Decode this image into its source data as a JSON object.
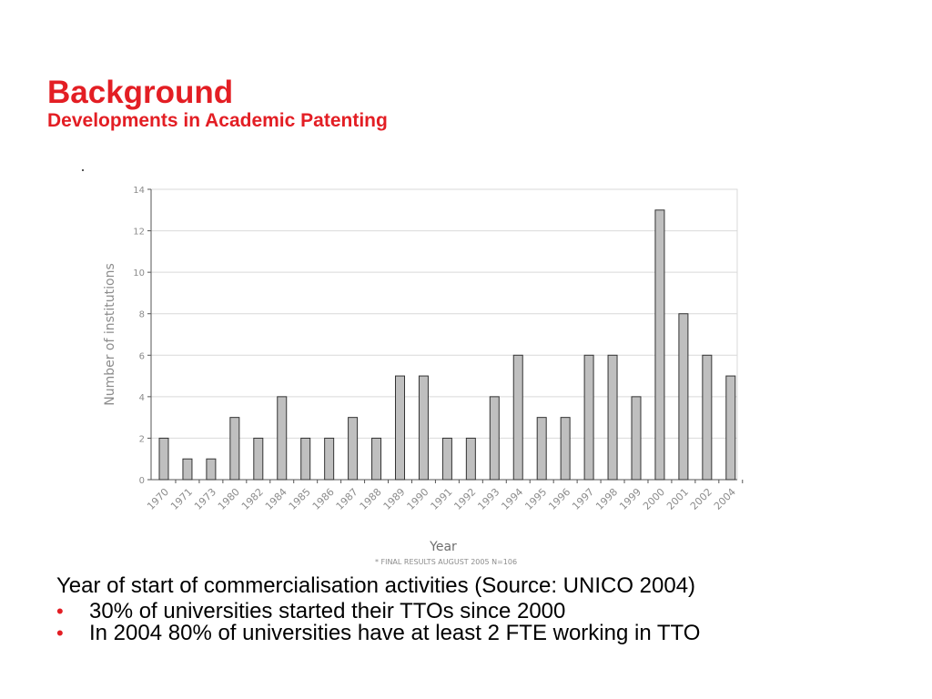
{
  "slide": {
    "title": "Background",
    "subtitle": "Developments in Academic Patenting",
    "caption": "Year of start of commercialisation activities (Source:  UNICO 2004)",
    "bullets": [
      "30% of universities started their TTOs since 2000",
      "In 2004 80% of universities have at least 2 FTE working in TTO"
    ],
    "colors": {
      "accent": "#e31e24",
      "bar_fill": "#bfbfbf",
      "bar_stroke": "#333333",
      "grid": "#d9d9d9",
      "axis_text": "#8c8c8c"
    }
  },
  "chart_data": {
    "type": "bar",
    "categories": [
      "1970",
      "1971",
      "1973",
      "1980",
      "1982",
      "1984",
      "1985",
      "1986",
      "1987",
      "1988",
      "1989",
      "1990",
      "1991",
      "1992",
      "1993",
      "1994",
      "1995",
      "1996",
      "1997",
      "1998",
      "1999",
      "2000",
      "2001",
      "2002",
      "2004"
    ],
    "values": [
      2,
      1,
      1,
      3,
      2,
      4,
      2,
      2,
      3,
      2,
      5,
      5,
      2,
      2,
      4,
      6,
      3,
      3,
      6,
      6,
      4,
      13,
      8,
      6,
      5
    ],
    "ylabel": "Number of institutions",
    "xlabel": "Year",
    "ylim": [
      0,
      14
    ],
    "yticks": [
      "0",
      "2",
      "4",
      "6",
      "8",
      "10",
      "12",
      "14"
    ],
    "grid": true,
    "note": "* FINAL RESULTS AUGUST 2005 N=106"
  }
}
